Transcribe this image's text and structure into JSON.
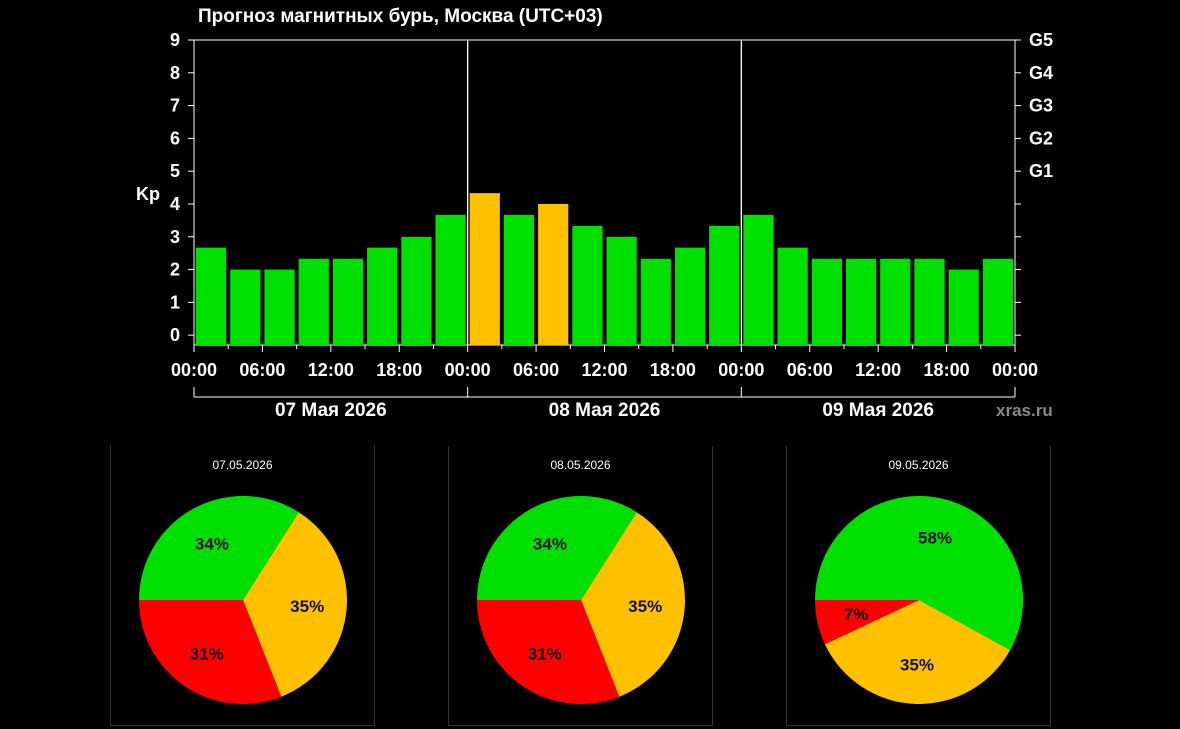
{
  "chart_data": [
    {
      "type": "bar",
      "title": "Прогноз магнитных бурь, Москва (UTC+03)",
      "ylabel": "Kp",
      "ylim": [
        0,
        9
      ],
      "yticks": [
        "0",
        "1",
        "2",
        "3",
        "4",
        "5",
        "6",
        "7",
        "8",
        "9"
      ],
      "g_scale": [
        {
          "label": "G1",
          "kp": 5
        },
        {
          "label": "G2",
          "kp": 6
        },
        {
          "label": "G3",
          "kp": 7
        },
        {
          "label": "G4",
          "kp": 8
        },
        {
          "label": "G5",
          "kp": 9
        }
      ],
      "xticks": [
        "00:00",
        "06:00",
        "12:00",
        "18:00",
        "00:00",
        "06:00",
        "12:00",
        "18:00",
        "00:00",
        "06:00",
        "12:00",
        "18:00",
        "00:00"
      ],
      "days": [
        "07 Мая 2026",
        "08 Мая 2026",
        "09 Мая 2026"
      ],
      "values": [
        2.67,
        2.0,
        2.0,
        2.33,
        2.33,
        2.67,
        3.0,
        3.67,
        4.33,
        3.67,
        4.0,
        3.33,
        3.0,
        2.33,
        2.67,
        3.33,
        3.67,
        2.67,
        2.33,
        2.33,
        2.33,
        2.33,
        2.0,
        2.33
      ],
      "grid": "vertical day separators",
      "watermark": "xras.ru"
    },
    {
      "type": "pie",
      "title": "07.05.2026",
      "slices": [
        {
          "label": "34%",
          "value": 34,
          "color": "#00e000"
        },
        {
          "label": "35%",
          "value": 35,
          "color": "#ffc000"
        },
        {
          "label": "31%",
          "value": 31,
          "color": "#ff0000"
        }
      ]
    },
    {
      "type": "pie",
      "title": "08.05.2026",
      "slices": [
        {
          "label": "34%",
          "value": 34,
          "color": "#00e000"
        },
        {
          "label": "35%",
          "value": 35,
          "color": "#ffc000"
        },
        {
          "label": "31%",
          "value": 31,
          "color": "#ff0000"
        }
      ]
    },
    {
      "type": "pie",
      "title": "09.05.2026",
      "slices": [
        {
          "label": "58%",
          "value": 58,
          "color": "#00e000"
        },
        {
          "label": "35%",
          "value": 35,
          "color": "#ffc000"
        },
        {
          "label": "7%",
          "value": 7,
          "color": "#ff0000"
        }
      ]
    }
  ],
  "colors": {
    "quiet": "#00e000",
    "active": "#ffc000",
    "storm": "#ff0000",
    "background": "#000000"
  }
}
